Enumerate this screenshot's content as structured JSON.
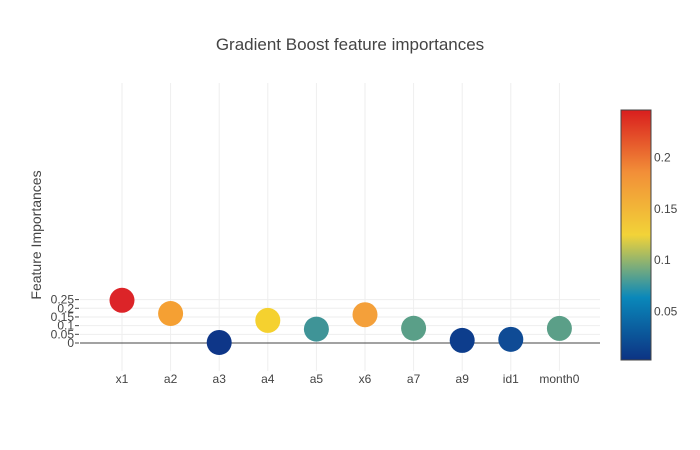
{
  "chart_data": {
    "type": "scatter",
    "title": "Gradient Boost feature importances",
    "xlabel": "",
    "ylabel": "Feature Importances",
    "categories": [
      "x1",
      "a2",
      "a3",
      "a4",
      "a5",
      "x6",
      "a7",
      "a9",
      "id1",
      "month0"
    ],
    "values": [
      0.246,
      0.17,
      0.003,
      0.13,
      0.08,
      0.163,
      0.085,
      0.015,
      0.021,
      0.084
    ],
    "ylim": [
      -0.03,
      0.27
    ],
    "yticks": [
      0,
      0.05,
      0.1,
      0.15,
      0.2,
      0.25
    ],
    "ytick_labels": [
      "0",
      "0.05",
      "0.1",
      "0.15",
      "0.2",
      "0.25"
    ],
    "grid": true,
    "colorscale": {
      "name": "Portland",
      "range": [
        0.003,
        0.246
      ],
      "ticks": [
        0.05,
        0.1,
        0.15,
        0.2
      ],
      "tick_labels": [
        "0.05",
        "0.1",
        "0.15",
        "0.2"
      ],
      "placement": "right",
      "colors": [
        "#0c3383",
        "#0a88ba",
        "#f2d338",
        "#f28f38",
        "#d91e1e"
      ]
    },
    "marker_colors": [
      "#dc2428",
      "#f5a033",
      "#0e3688",
      "#f5d12f",
      "#3f9497",
      "#f4a03a",
      "#5a9f88",
      "#0d3d8c",
      "#0f4b95",
      "#5b9f88"
    ]
  }
}
